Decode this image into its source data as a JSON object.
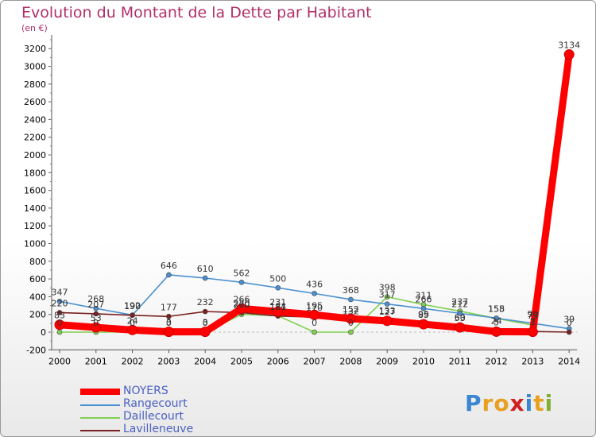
{
  "chart_data": {
    "type": "line",
    "title": "Evolution du Montant de la Dette par Habitant",
    "subtitle": "(en €)",
    "x": [
      "2000",
      "2001",
      "2002",
      "2003",
      "2004",
      "2005",
      "2006",
      "2007",
      "2008",
      "2009",
      "2010",
      "2011",
      "2012",
      "2013",
      "2014"
    ],
    "yticks": [
      -200,
      0,
      200,
      400,
      600,
      800,
      1000,
      1200,
      1400,
      1600,
      1800,
      2000,
      2200,
      2400,
      2600,
      2800,
      3000,
      3200
    ],
    "ylim": [
      -200,
      3300
    ],
    "grid": false,
    "legend_position": "bottom-left",
    "series": [
      {
        "name": "NOYERS",
        "color": "#ff0000",
        "values": [
          83,
          53,
          24,
          3,
          3,
          266,
          231,
          195,
          152,
          127,
          89,
          53,
          5,
          3,
          3134
        ],
        "labels": [
          "83",
          "53",
          "24",
          "3",
          "3",
          "266",
          "231",
          "195",
          "152",
          "127",
          "89",
          "53",
          "5",
          "3",
          "3134"
        ]
      },
      {
        "name": "Rangecourt",
        "color": "#4a90d0",
        "values": [
          347,
          268,
          192,
          646,
          610,
          562,
          500,
          436,
          368,
          317,
          266,
          212,
          158,
          99,
          39
        ],
        "labels": [
          "347",
          "268",
          "192",
          "646",
          "610",
          "562",
          "500",
          "436",
          "368",
          "317",
          "266",
          "212",
          "158",
          "99",
          "39"
        ]
      },
      {
        "name": "Daillecourt",
        "color": "#80d050",
        "values": [
          0,
          0,
          0,
          0,
          0,
          200,
          184,
          0,
          0,
          398,
          311,
          237,
          155,
          79,
          null
        ],
        "labels": [
          "0",
          "0",
          "0",
          "0",
          "0",
          "200",
          "184",
          "0",
          "0",
          "398",
          "311",
          "237",
          "155",
          "79",
          ""
        ]
      },
      {
        "name": "Lavilleneuve",
        "color": "#7a2020",
        "values": [
          220,
          207,
          190,
          177,
          232,
          220,
          181,
          170,
          132,
          133,
          95,
          60,
          24,
          7,
          0
        ],
        "labels": [
          "220",
          "207",
          "190",
          "177",
          "232",
          "220",
          "181",
          "170",
          "132",
          "133",
          "95",
          "60",
          "24",
          "7",
          "0"
        ]
      }
    ]
  },
  "logo": {
    "letters": [
      "P",
      "r",
      "o",
      "x",
      "i",
      "t",
      "i"
    ],
    "colors": [
      "#3a86d0",
      "#e8a020",
      "#e8a020",
      "#d02020",
      "#3a86d0",
      "#e8a020",
      "#80b030"
    ]
  }
}
